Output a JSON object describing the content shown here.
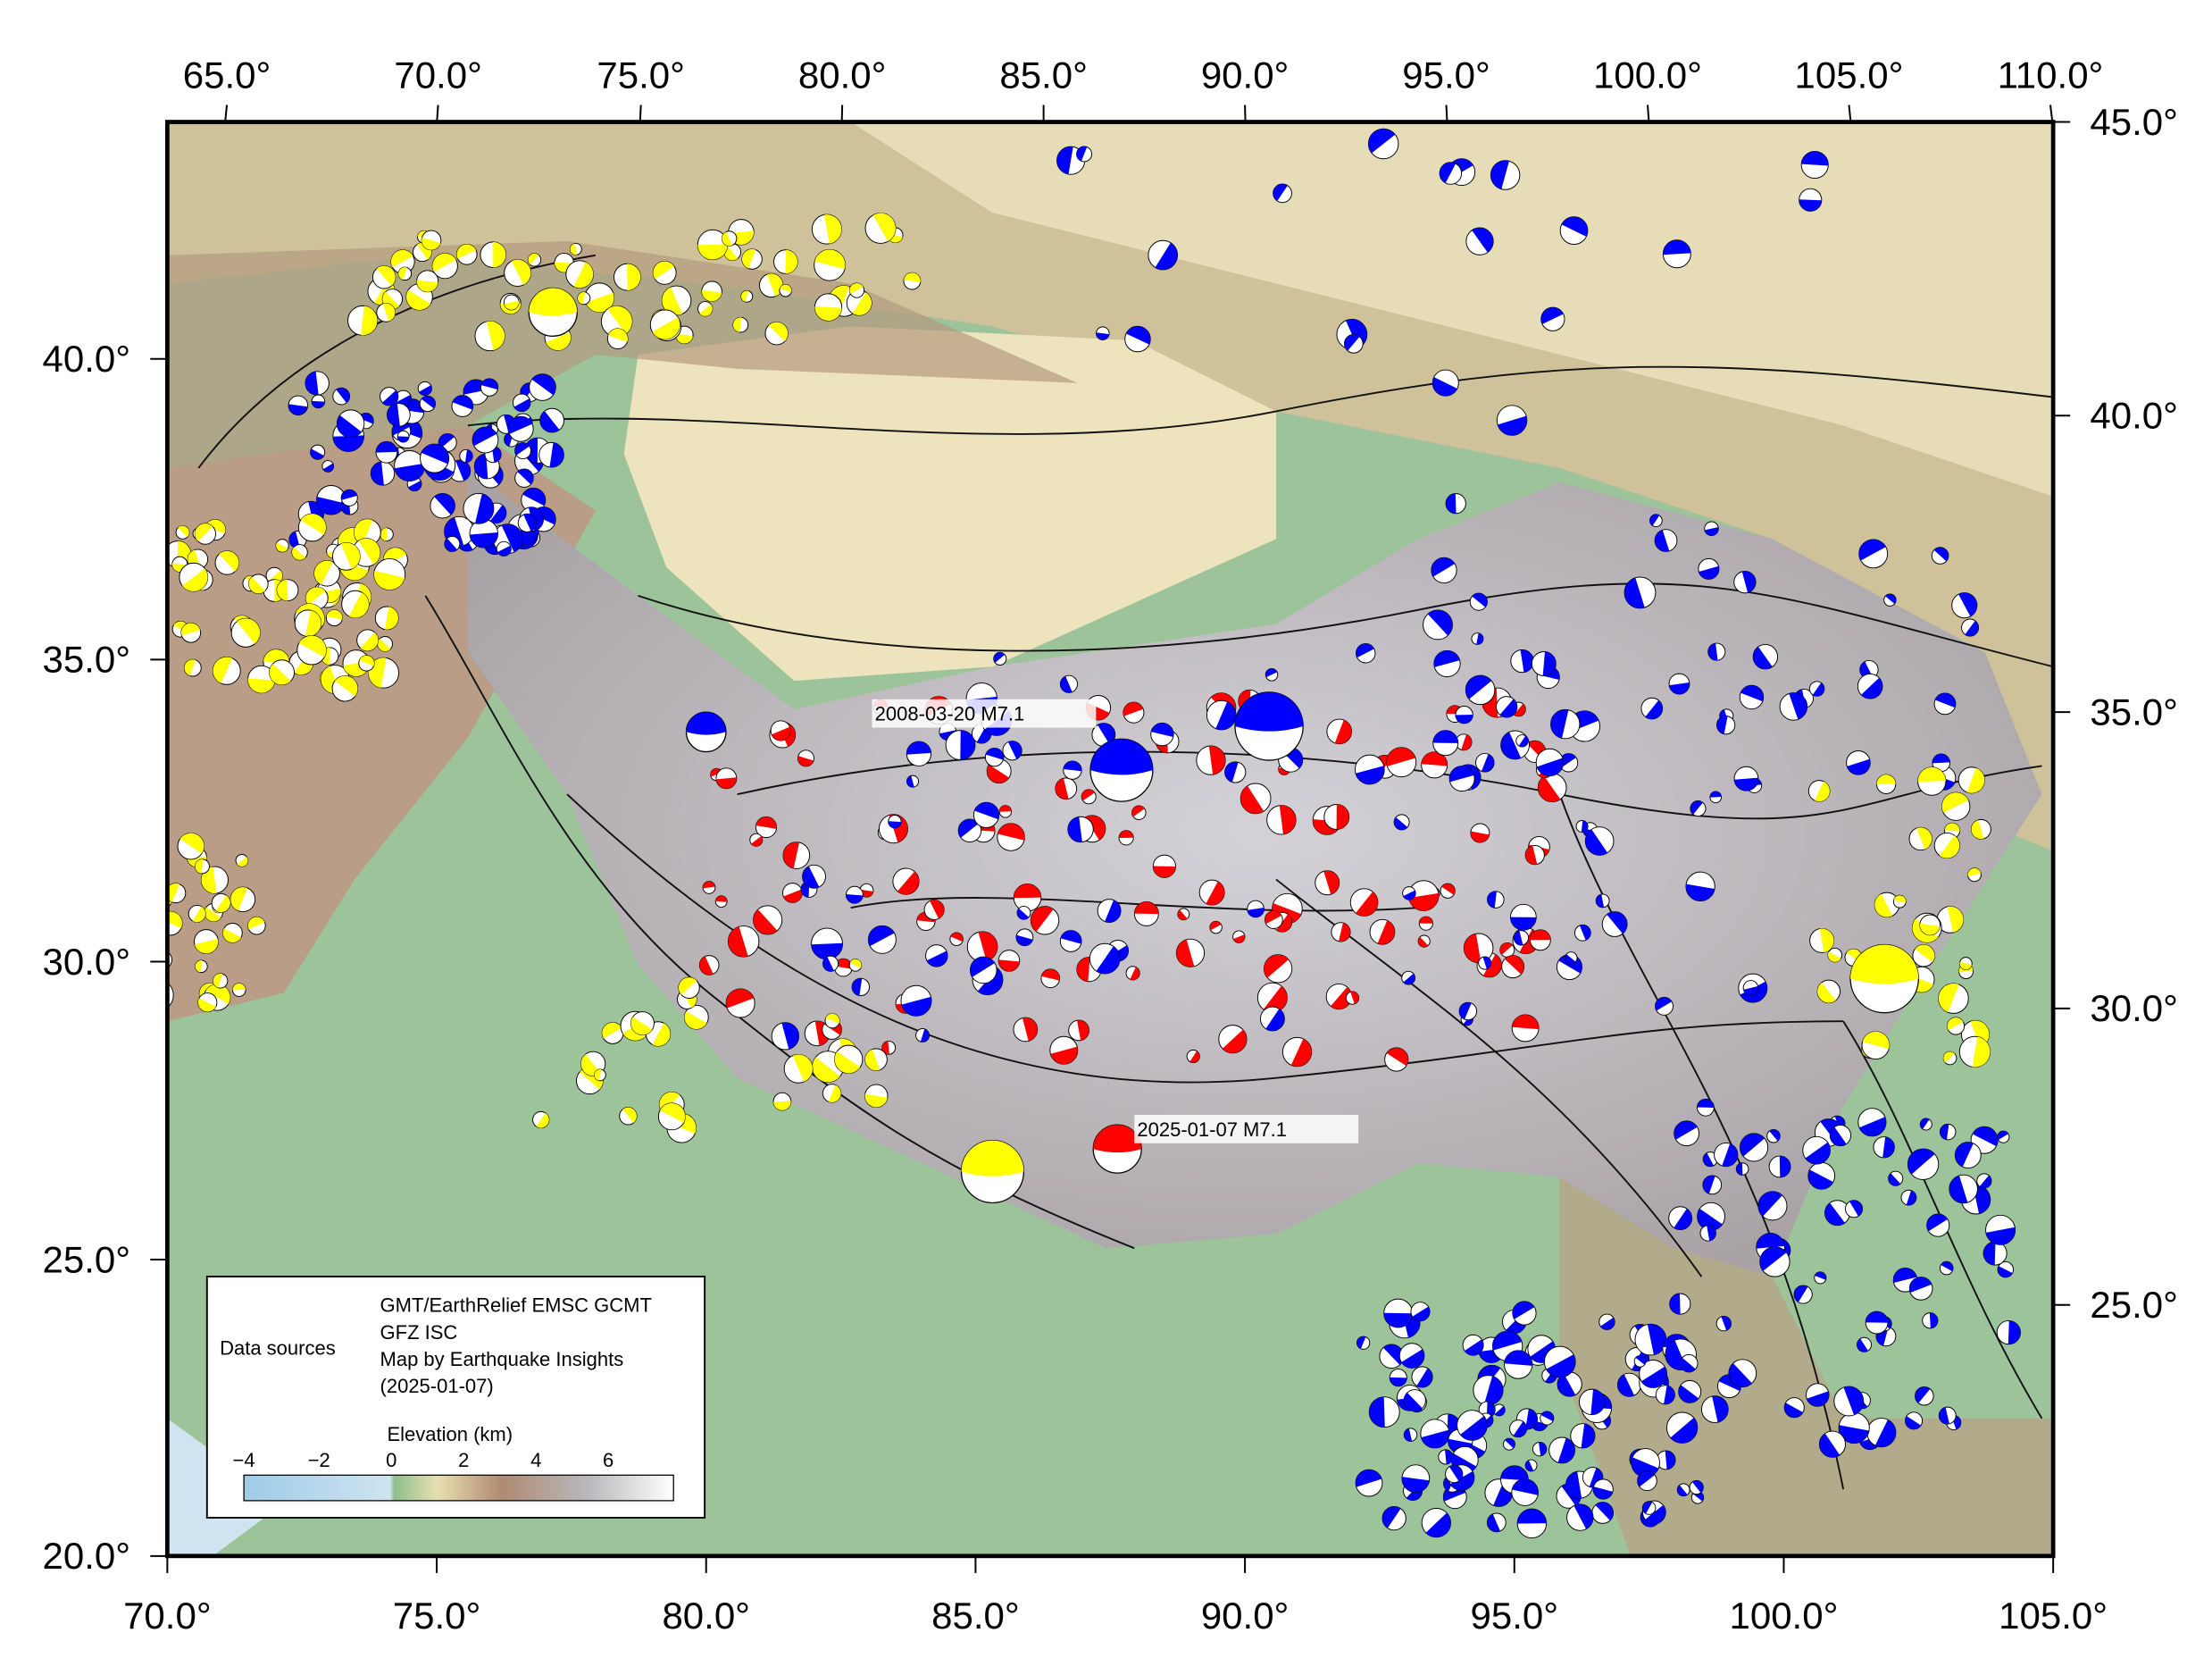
{
  "axes": {
    "top": [
      "65.0°",
      "70.0°",
      "75.0°",
      "80.0°",
      "85.0°",
      "90.0°",
      "95.0°",
      "100.0°",
      "105.0°",
      "110.0°"
    ],
    "bottom": [
      "70.0°",
      "75.0°",
      "80.0°",
      "85.0°",
      "90.0°",
      "95.0°",
      "100.0°",
      "105.0°"
    ],
    "left": [
      "20.0°",
      "25.0°",
      "30.0°",
      "35.0°",
      "40.0°"
    ],
    "right": [
      "45.0°",
      "40.0°",
      "35.0°",
      "30.0°",
      "25.0°"
    ]
  },
  "annotations": [
    "2008-03-20 M7.1",
    "2025-01-07 M7.1"
  ],
  "legend": {
    "label": "Data sources",
    "credits": [
      "GMT/EarthRelief EMSC GCMT",
      "GFZ ISC",
      "Map by Earthquake Insights",
      "(2025-01-07)"
    ],
    "colorbar_title": "Elevation (km)",
    "colorbar_ticks": [
      "−4",
      "−2",
      "0",
      "2",
      "4",
      "6"
    ]
  }
}
